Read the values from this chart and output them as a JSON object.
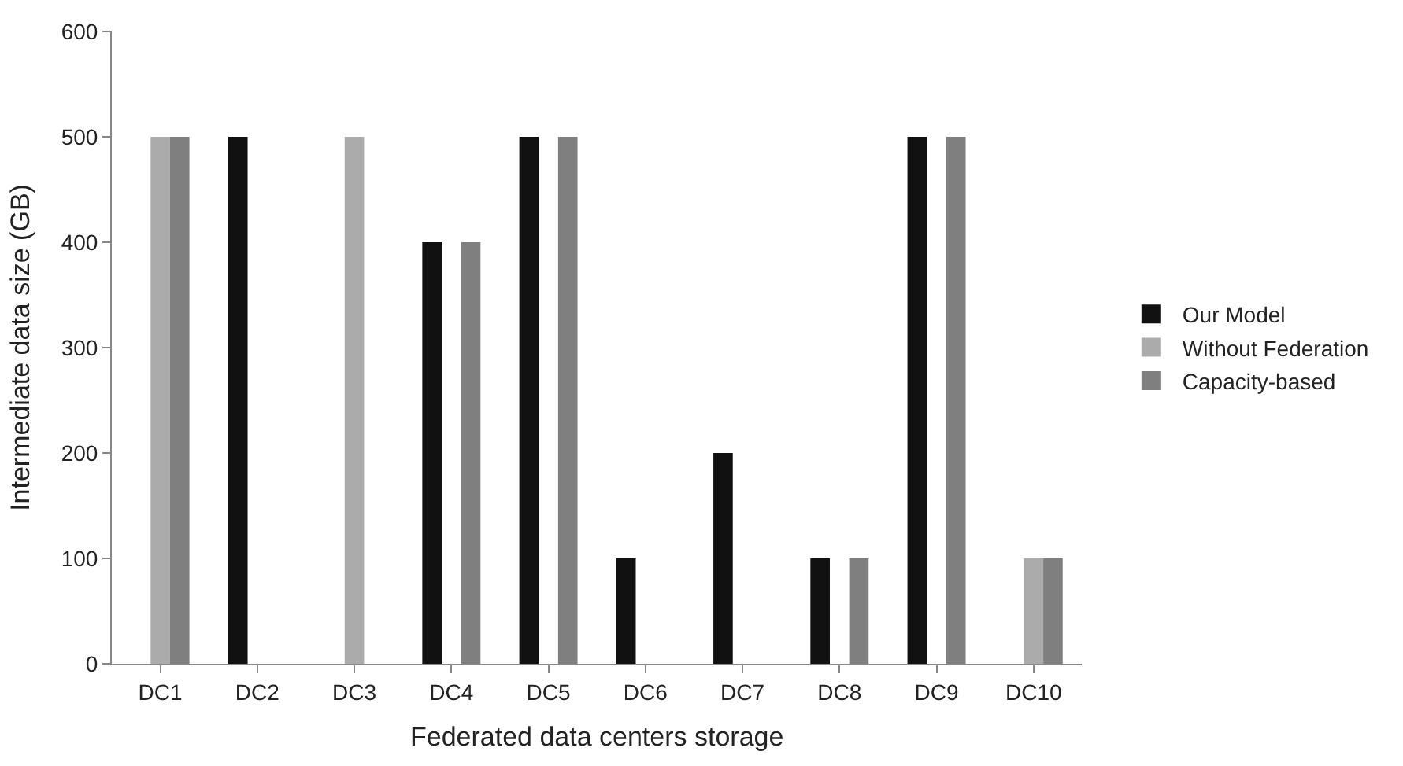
{
  "chart_data": {
    "type": "bar",
    "xlabel": "Federated data centers storage",
    "ylabel": "Intermediate data size (GB)",
    "categories": [
      "DC1",
      "DC2",
      "DC3",
      "DC4",
      "DC5",
      "DC6",
      "DC7",
      "DC8",
      "DC9",
      "DC10"
    ],
    "series": [
      {
        "name": "Our Model",
        "color": "#111111",
        "values": [
          0,
          500,
          0,
          400,
          500,
          100,
          200,
          100,
          500,
          0
        ]
      },
      {
        "name": "Without Federation",
        "color": "#ababab",
        "values": [
          500,
          0,
          500,
          0,
          0,
          0,
          0,
          0,
          0,
          100
        ]
      },
      {
        "name": "Capacity-based",
        "color": "#7f7f7f",
        "values": [
          500,
          0,
          0,
          400,
          500,
          0,
          0,
          100,
          500,
          100
        ]
      }
    ],
    "ylim": [
      0,
      600
    ],
    "yticks": [
      0,
      100,
      200,
      300,
      400,
      500,
      600
    ],
    "legend": "right"
  }
}
